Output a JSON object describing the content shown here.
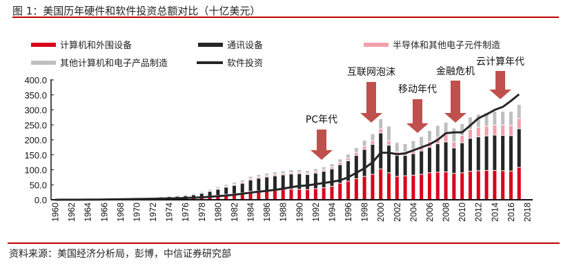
{
  "header": {
    "title": "图 1：美国历年硬件和软件投资总额对比（十亿美元）"
  },
  "footer": {
    "source": "资料来源：美国经济分析局，彭博，中信证券研究部"
  },
  "colors": {
    "computers": "#d9001b",
    "comms": "#262626",
    "semis": "#f2a0ab",
    "other": "#bfbfbf",
    "software": "#262626",
    "arrow": "#c0504d",
    "rule": "#c00000"
  },
  "chart_data": {
    "type": "bar",
    "title": "美国历年硬件和软件投资总额对比（十亿美元）",
    "xlabel": "",
    "ylabel": "",
    "ylim": [
      0,
      400
    ],
    "yticks": [
      "0.0",
      "50.0",
      "100.0",
      "150.0",
      "200.0",
      "250.0",
      "300.0",
      "350.0",
      "400.0"
    ],
    "xtick_labels": [
      "1960",
      "1962",
      "1964",
      "1966",
      "1968",
      "1970",
      "1972",
      "1974",
      "1976",
      "1978",
      "1980",
      "1982",
      "1984",
      "1986",
      "1988",
      "1990",
      "1992",
      "1994",
      "1996",
      "1998",
      "2000",
      "2002",
      "2004",
      "2006",
      "2008",
      "2010",
      "2012",
      "2014",
      "2016",
      "2018"
    ],
    "legend": [
      {
        "name": "计算机和外围设备",
        "key": "computers",
        "kind": "bar"
      },
      {
        "name": "通讯设备",
        "key": "comms",
        "kind": "bar"
      },
      {
        "name": "半导体和其他电子元件制造",
        "key": "semis",
        "kind": "bar"
      },
      {
        "name": "其他计算机和电子产品制造",
        "key": "other",
        "kind": "bar"
      },
      {
        "name": "软件投资",
        "key": "software",
        "kind": "line"
      }
    ],
    "legend_position": "top",
    "stacked": true,
    "years": [
      1960,
      1961,
      1962,
      1963,
      1964,
      1965,
      1966,
      1967,
      1968,
      1969,
      1970,
      1971,
      1972,
      1973,
      1974,
      1975,
      1976,
      1977,
      1978,
      1979,
      1980,
      1981,
      1982,
      1983,
      1984,
      1985,
      1986,
      1987,
      1988,
      1989,
      1990,
      1991,
      1992,
      1993,
      1994,
      1995,
      1996,
      1997,
      1998,
      1999,
      2000,
      2001,
      2002,
      2003,
      2004,
      2005,
      2006,
      2007,
      2008,
      2009,
      2010,
      2011,
      2012,
      2013,
      2014,
      2015,
      2016,
      2017
    ],
    "series": [
      {
        "name": "计算机和外围设备",
        "key": "computers",
        "values": [
          0.2,
          0.3,
          0.4,
          0.5,
          0.7,
          0.9,
          1.2,
          1.5,
          1.8,
          2.2,
          2.5,
          2.8,
          3.2,
          3.8,
          4.5,
          5.0,
          6.0,
          7.5,
          9.5,
          12,
          15,
          18,
          20,
          23,
          28,
          30,
          31,
          33,
          35,
          36,
          35,
          34,
          37,
          40,
          45,
          55,
          62,
          70,
          78,
          85,
          103,
          90,
          78,
          80,
          82,
          85,
          90,
          92,
          93,
          88,
          90,
          95,
          97,
          98,
          98,
          97,
          96,
          108
        ]
      },
      {
        "name": "通讯设备",
        "key": "comms",
        "values": [
          1.0,
          1.1,
          1.2,
          1.3,
          1.5,
          1.7,
          2.0,
          2.2,
          2.5,
          2.8,
          3.5,
          3.8,
          4.2,
          5.0,
          6.0,
          6.5,
          7.5,
          9.0,
          12,
          16,
          20,
          24,
          28,
          32,
          38,
          42,
          45,
          47,
          48,
          50,
          52,
          50,
          52,
          55,
          58,
          62,
          68,
          78,
          90,
          100,
          120,
          92,
          70,
          68,
          72,
          78,
          85,
          95,
          100,
          85,
          100,
          110,
          113,
          115,
          118,
          118,
          118,
          129
        ]
      },
      {
        "name": "半导体和其他电子元件制造",
        "key": "semis",
        "values": [
          0.1,
          0.1,
          0.1,
          0.2,
          0.2,
          0.2,
          0.3,
          0.3,
          0.3,
          0.4,
          0.5,
          0.5,
          0.6,
          0.7,
          0.8,
          0.8,
          1.0,
          1.2,
          1.5,
          2.0,
          2.5,
          3.0,
          3.5,
          4.0,
          4.5,
          4.5,
          4.5,
          5.0,
          5.0,
          5.0,
          5.0,
          5.0,
          5.5,
          6.0,
          7.0,
          8.0,
          9.0,
          10,
          11,
          12,
          14,
          15,
          12,
          12,
          14,
          15,
          20,
          22,
          25,
          20,
          25,
          30,
          32,
          33,
          33,
          34,
          34,
          34
        ]
      },
      {
        "name": "其他计算机和电子产品制造",
        "key": "other",
        "values": [
          0.3,
          0.3,
          0.4,
          0.4,
          0.5,
          0.6,
          0.7,
          0.8,
          0.9,
          1.0,
          1.2,
          1.4,
          1.6,
          1.8,
          2.0,
          2.2,
          2.5,
          3.0,
          3.5,
          4.0,
          4.5,
          5.0,
          5.5,
          6.0,
          6.5,
          6.5,
          7.0,
          7.0,
          7.5,
          7.5,
          7.5,
          7.5,
          8.0,
          8.0,
          9.0,
          10,
          12,
          15,
          18,
          22,
          32,
          48,
          30,
          26,
          28,
          32,
          35,
          38,
          40,
          45,
          38,
          40,
          42,
          44,
          45,
          45,
          46,
          46
        ]
      },
      {
        "name": "软件投资",
        "key": "software",
        "type": "line",
        "values": [
          0.1,
          0.2,
          0.3,
          0.4,
          0.5,
          0.7,
          1.0,
          1.3,
          1.6,
          2.0,
          2.5,
          3.0,
          3.5,
          4.0,
          4.5,
          5.0,
          6.0,
          7.0,
          8.0,
          10,
          12,
          14,
          17,
          20,
          24,
          27,
          30,
          33,
          37,
          42,
          46,
          48,
          52,
          56,
          60,
          65,
          75,
          90,
          105,
          125,
          157,
          157,
          152,
          155,
          165,
          175,
          185,
          200,
          222,
          225,
          225,
          248,
          272,
          285,
          300,
          310,
          330,
          352
        ]
      }
    ],
    "annotations": [
      {
        "text": "PC年代",
        "year": 1993
      },
      {
        "text": "互联网泡沫",
        "year": 1999
      },
      {
        "text": "移动年代",
        "year": 2005
      },
      {
        "text": "金融危机",
        "year": 2009
      },
      {
        "text": "云计算年代",
        "year": 2014
      }
    ]
  }
}
